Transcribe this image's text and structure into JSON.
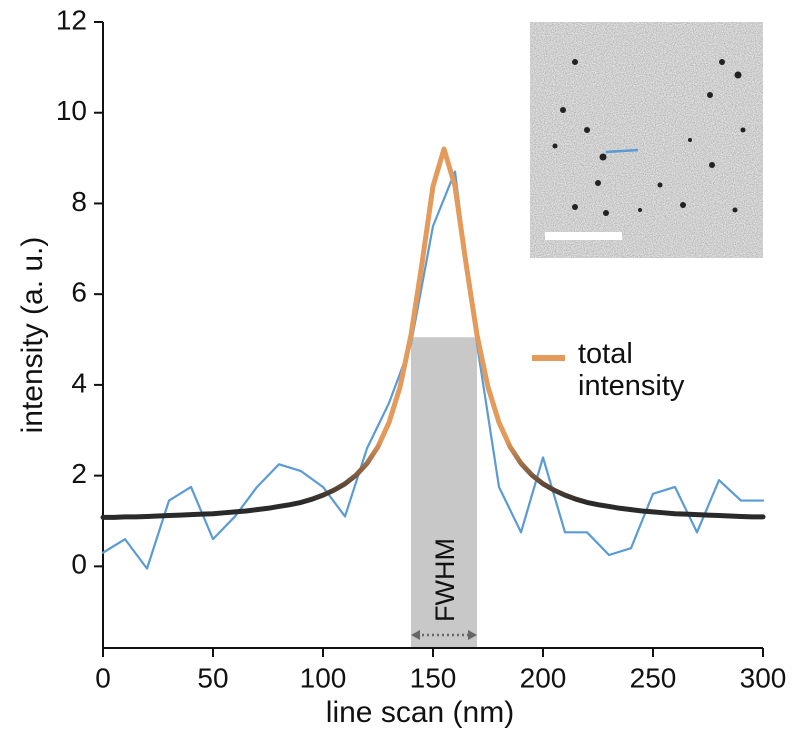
{
  "chart_data": {
    "type": "line",
    "xlabel": "line scan (nm)",
    "ylabel": "intensity (a. u.)",
    "xlim": [
      0,
      300
    ],
    "xticks": [
      0,
      50,
      100,
      150,
      200,
      250,
      300
    ],
    "ylim": [
      -1.8,
      12
    ],
    "yticks": [
      0,
      2,
      4,
      6,
      8,
      10,
      12
    ],
    "series": [
      {
        "color": "#5b9bd5",
        "x": [
          0,
          10,
          20,
          30,
          40,
          50,
          60,
          70,
          80,
          90,
          100,
          110,
          120,
          130,
          140,
          150,
          160,
          170,
          180,
          190,
          200,
          210,
          220,
          230,
          240,
          250,
          260,
          270,
          280,
          290,
          300
        ],
        "values": [
          0.3,
          0.6,
          -0.05,
          1.45,
          1.75,
          0.6,
          1.1,
          1.75,
          2.25,
          2.1,
          1.75,
          1.1,
          2.6,
          3.6,
          4.9,
          7.5,
          8.7,
          4.9,
          1.75,
          0.75,
          2.4,
          0.75,
          0.75,
          0.25,
          0.4,
          1.6,
          1.75,
          0.75,
          1.9,
          1.45,
          1.45
        ]
      },
      {
        "name": "total intensity",
        "color": "#e39a5b",
        "tail_color": "#2a2a2a",
        "x": [
          0,
          5,
          10,
          15,
          20,
          25,
          30,
          35,
          40,
          45,
          50,
          55,
          60,
          65,
          70,
          75,
          80,
          85,
          90,
          95,
          100,
          105,
          110,
          115,
          120,
          125,
          130,
          135,
          140,
          145,
          150,
          155,
          160,
          165,
          170,
          175,
          180,
          185,
          190,
          195,
          200,
          205,
          210,
          215,
          220,
          225,
          230,
          235,
          240,
          245,
          250,
          255,
          260,
          265,
          270,
          275,
          280,
          285,
          290,
          295,
          300
        ],
        "values": [
          1.08,
          1.08,
          1.09,
          1.09,
          1.1,
          1.11,
          1.12,
          1.13,
          1.14,
          1.15,
          1.16,
          1.18,
          1.2,
          1.22,
          1.25,
          1.28,
          1.32,
          1.36,
          1.41,
          1.48,
          1.57,
          1.68,
          1.82,
          2.01,
          2.27,
          2.64,
          3.17,
          3.95,
          5.1,
          6.68,
          8.38,
          9.2,
          8.38,
          6.68,
          5.1,
          3.95,
          3.17,
          2.64,
          2.27,
          2.01,
          1.82,
          1.68,
          1.57,
          1.48,
          1.41,
          1.36,
          1.32,
          1.28,
          1.25,
          1.22,
          1.2,
          1.18,
          1.16,
          1.15,
          1.14,
          1.13,
          1.12,
          1.11,
          1.1,
          1.09,
          1.09
        ]
      }
    ],
    "fwhm": {
      "label": "FWHM",
      "x": [
        140,
        170
      ],
      "top": 5.05,
      "color": "#c8c8c8"
    }
  }
}
